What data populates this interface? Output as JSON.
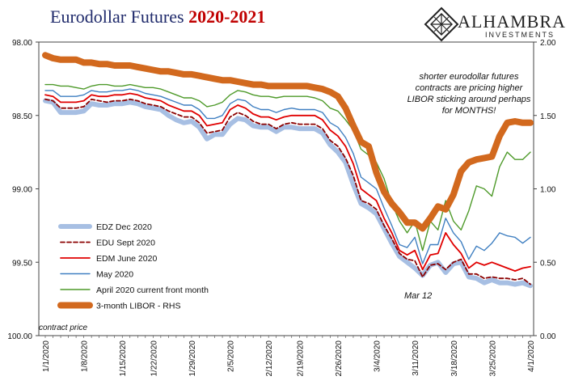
{
  "header": {
    "title_main": "Eurodollar Futures",
    "title_years": "2020-2021"
  },
  "logo": {
    "name": "ALHAMBRA",
    "sub": "INVESTMENTS"
  },
  "annotations": {
    "main": "shorter eurodollar futures contracts are pricing higher LIBOR sticking around perhaps for MONTHS!",
    "mar12": "Mar 12",
    "contract_price": "contract price"
  },
  "colors": {
    "edz": "#a7bfe3",
    "edu": "#8b0000",
    "edm": "#e00000",
    "may": "#3f7fc1",
    "april": "#4e9a2a",
    "libor": "#d2691e"
  },
  "chart_data": {
    "type": "line",
    "x": [
      "1/1/2020",
      "1/2/2020",
      "1/3/2020",
      "1/6/2020",
      "1/7/2020",
      "1/8/2020",
      "1/9/2020",
      "1/10/2020",
      "1/13/2020",
      "1/14/2020",
      "1/15/2020",
      "1/16/2020",
      "1/17/2020",
      "1/21/2020",
      "1/22/2020",
      "1/23/2020",
      "1/24/2020",
      "1/27/2020",
      "1/28/2020",
      "1/29/2020",
      "1/30/2020",
      "1/31/2020",
      "2/3/2020",
      "2/4/2020",
      "2/5/2020",
      "2/6/2020",
      "2/7/2020",
      "2/10/2020",
      "2/11/2020",
      "2/12/2020",
      "2/13/2020",
      "2/14/2020",
      "2/18/2020",
      "2/19/2020",
      "2/20/2020",
      "2/21/2020",
      "2/24/2020",
      "2/25/2020",
      "2/26/2020",
      "2/27/2020",
      "2/28/2020",
      "3/2/2020",
      "3/3/2020",
      "3/4/2020",
      "3/5/2020",
      "3/6/2020",
      "3/9/2020",
      "3/10/2020",
      "3/11/2020",
      "3/12/2020",
      "3/13/2020",
      "3/16/2020",
      "3/17/2020",
      "3/18/2020",
      "3/19/2020",
      "3/20/2020",
      "3/23/2020",
      "3/24/2020",
      "3/25/2020",
      "3/26/2020",
      "3/27/2020",
      "3/30/2020",
      "3/31/2020",
      "4/1/2020"
    ],
    "x_tick_labels": [
      "1/1/2020",
      "1/8/2020",
      "1/15/2020",
      "1/22/2020",
      "1/29/2020",
      "2/5/2020",
      "2/12/2020",
      "2/19/2020",
      "2/26/2020",
      "3/4/2020",
      "3/11/2020",
      "3/18/2020",
      "3/25/2020",
      "4/1/2020"
    ],
    "y_left": {
      "label": "contract price",
      "reversed": true,
      "range": [
        98.0,
        100.0
      ],
      "ticks": [
        "98.00",
        "98.50",
        "99.00",
        "99.50",
        "100.00"
      ]
    },
    "y_right": {
      "label": "",
      "range": [
        0.0,
        2.0
      ],
      "ticks": [
        "0.00",
        "0.50",
        "1.00",
        "1.50",
        "2.00"
      ]
    },
    "legend": {
      "position": "bottom-left"
    },
    "series": [
      {
        "name": "EDZ Dec 2020",
        "key": "edz",
        "axis": "left",
        "width": 6,
        "dash": "",
        "values": [
          98.4,
          98.41,
          98.48,
          98.48,
          98.48,
          98.47,
          98.42,
          98.43,
          98.43,
          98.42,
          98.42,
          98.41,
          98.42,
          98.44,
          98.45,
          98.46,
          98.5,
          98.53,
          98.55,
          98.54,
          98.58,
          98.66,
          98.63,
          98.63,
          98.56,
          98.52,
          98.53,
          98.57,
          98.58,
          98.58,
          98.61,
          98.58,
          98.58,
          98.59,
          98.59,
          98.59,
          98.62,
          98.7,
          98.75,
          98.82,
          98.97,
          99.1,
          99.13,
          99.17,
          99.27,
          99.37,
          99.46,
          99.5,
          99.54,
          99.59,
          99.52,
          99.5,
          99.57,
          99.51,
          99.5,
          99.6,
          99.61,
          99.64,
          99.62,
          99.64,
          99.64,
          99.65,
          99.64,
          99.66
        ]
      },
      {
        "name": "EDU Sept 2020",
        "key": "edu",
        "axis": "left",
        "width": 1.8,
        "dash": "5,3",
        "values": [
          98.39,
          98.4,
          98.45,
          98.45,
          98.45,
          98.44,
          98.39,
          98.4,
          98.41,
          98.4,
          98.4,
          98.39,
          98.4,
          98.42,
          98.43,
          98.44,
          98.47,
          98.49,
          98.51,
          98.51,
          98.55,
          98.62,
          98.61,
          98.6,
          98.51,
          98.48,
          98.5,
          98.54,
          98.56,
          98.56,
          98.59,
          98.56,
          98.55,
          98.56,
          98.56,
          98.56,
          98.59,
          98.67,
          98.71,
          98.79,
          98.91,
          99.08,
          99.1,
          99.14,
          99.25,
          99.34,
          99.44,
          99.48,
          99.49,
          99.6,
          99.52,
          99.51,
          99.55,
          99.5,
          99.48,
          99.58,
          99.58,
          99.61,
          99.6,
          99.61,
          99.61,
          99.62,
          99.61,
          99.65
        ]
      },
      {
        "name": "EDM June 2020",
        "key": "edm",
        "axis": "left",
        "width": 1.8,
        "dash": "",
        "values": [
          98.36,
          98.37,
          98.41,
          98.41,
          98.41,
          98.4,
          98.36,
          98.37,
          98.37,
          98.36,
          98.36,
          98.35,
          98.36,
          98.38,
          98.39,
          98.4,
          98.43,
          98.45,
          98.47,
          98.47,
          98.5,
          98.57,
          98.56,
          98.55,
          98.46,
          98.43,
          98.45,
          98.49,
          98.51,
          98.51,
          98.53,
          98.51,
          98.5,
          98.5,
          98.5,
          98.5,
          98.53,
          98.6,
          98.64,
          98.71,
          98.83,
          99.0,
          99.04,
          99.08,
          99.2,
          99.3,
          99.42,
          99.45,
          99.42,
          99.55,
          99.45,
          99.44,
          99.3,
          99.38,
          99.44,
          99.54,
          99.5,
          99.52,
          99.5,
          99.52,
          99.54,
          99.56,
          99.54,
          99.53
        ]
      },
      {
        "name": "May 2020",
        "key": "may",
        "axis": "left",
        "width": 1.4,
        "dash": "",
        "values": [
          98.33,
          98.33,
          98.37,
          98.37,
          98.37,
          98.36,
          98.33,
          98.34,
          98.34,
          98.33,
          98.33,
          98.32,
          98.33,
          98.35,
          98.36,
          98.37,
          98.39,
          98.41,
          98.43,
          98.43,
          98.46,
          98.52,
          98.52,
          98.5,
          98.42,
          98.39,
          98.4,
          98.44,
          98.46,
          98.46,
          98.48,
          98.46,
          98.45,
          98.46,
          98.46,
          98.46,
          98.48,
          98.55,
          98.58,
          98.65,
          98.76,
          98.92,
          98.96,
          99.0,
          99.13,
          99.25,
          99.38,
          99.4,
          99.33,
          99.51,
          99.38,
          99.38,
          99.2,
          99.3,
          99.36,
          99.48,
          99.39,
          99.42,
          99.37,
          99.3,
          99.32,
          99.33,
          99.37,
          99.33
        ]
      },
      {
        "name": "April 2020 current front month",
        "key": "april",
        "axis": "left",
        "width": 1.4,
        "dash": "",
        "values": [
          98.29,
          98.29,
          98.3,
          98.3,
          98.31,
          98.32,
          98.3,
          98.29,
          98.29,
          98.3,
          98.3,
          98.29,
          98.3,
          98.31,
          98.31,
          98.32,
          98.34,
          98.36,
          98.38,
          98.38,
          98.4,
          98.44,
          98.43,
          98.41,
          98.36,
          98.33,
          98.34,
          98.36,
          98.37,
          98.37,
          98.38,
          98.37,
          98.37,
          98.37,
          98.37,
          98.38,
          98.4,
          98.45,
          98.47,
          98.53,
          98.6,
          98.73,
          98.77,
          98.82,
          98.93,
          99.1,
          99.22,
          99.3,
          99.22,
          99.42,
          99.22,
          99.28,
          99.08,
          99.22,
          99.28,
          99.15,
          98.98,
          99.0,
          99.05,
          98.85,
          98.75,
          98.8,
          98.8,
          98.75
        ]
      },
      {
        "name": "3-month LIBOR - RHS",
        "key": "libor",
        "axis": "right",
        "width": 8,
        "dash": "",
        "values": [
          1.91,
          1.89,
          1.88,
          1.88,
          1.88,
          1.86,
          1.86,
          1.85,
          1.85,
          1.84,
          1.84,
          1.84,
          1.83,
          1.82,
          1.81,
          1.8,
          1.8,
          1.79,
          1.78,
          1.78,
          1.77,
          1.76,
          1.75,
          1.74,
          1.74,
          1.73,
          1.72,
          1.71,
          1.71,
          1.7,
          1.7,
          1.7,
          1.7,
          1.7,
          1.7,
          1.69,
          1.68,
          1.66,
          1.63,
          1.55,
          1.43,
          1.32,
          1.29,
          1.11,
          0.98,
          0.9,
          0.84,
          0.77,
          0.77,
          0.73,
          0.8,
          0.88,
          0.86,
          0.96,
          1.12,
          1.18,
          1.2,
          1.21,
          1.22,
          1.36,
          1.45,
          1.46,
          1.45,
          1.45
        ]
      }
    ]
  }
}
